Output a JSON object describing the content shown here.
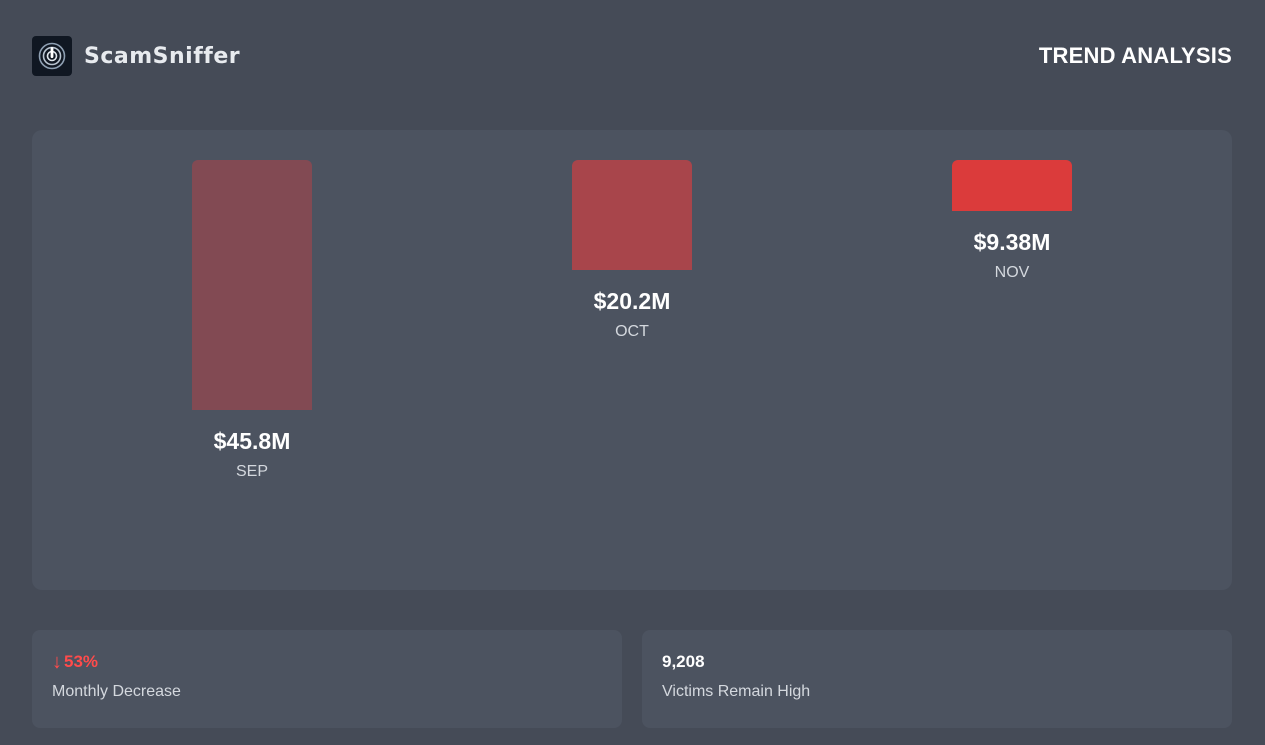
{
  "brand": {
    "name": "ScamSniffer"
  },
  "header": {
    "title": "TREND ANALYSIS"
  },
  "chart_data": {
    "type": "bar",
    "categories": [
      "SEP",
      "OCT",
      "NOV"
    ],
    "values": [
      45.8,
      20.2,
      9.38
    ],
    "value_labels": [
      "$45.8M",
      "$20.2M",
      "$9.38M"
    ],
    "unit": "$M",
    "bar_colors": [
      "#824a53",
      "#a8454b",
      "#db3b3b"
    ]
  },
  "stats": [
    {
      "value": "53%",
      "arrow": "↓",
      "label": "Monthly Decrease",
      "color": "#ff4b4b"
    },
    {
      "value": "9,208",
      "label": "Victims Remain High",
      "color": "#ffffff"
    }
  ],
  "colors": {
    "background": "#454b57",
    "panel": "#4c5360",
    "accent_red": "#ff4b4b"
  }
}
